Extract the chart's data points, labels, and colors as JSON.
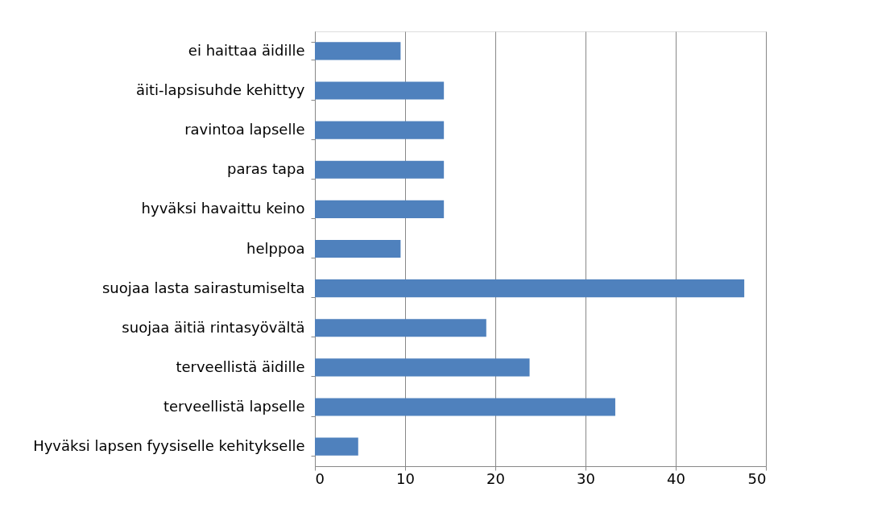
{
  "chart_data": {
    "type": "bar",
    "orientation": "horizontal",
    "categories": [
      "ei haittaa äidille",
      "äiti-lapsisuhde kehittyy",
      "ravintoa lapselle",
      "paras tapa",
      "hyväksi havaittu keino",
      "helppoa",
      "suojaa lasta sairastumiselta",
      "suojaa äitiä rintasyövältä",
      "terveellistä äidille",
      "terveellistä lapselle",
      "Hyväksi lapsen fyysiselle kehitykselle"
    ],
    "values": [
      9.5,
      14.3,
      14.3,
      14.3,
      14.3,
      9.5,
      47.6,
      19.0,
      23.8,
      33.3,
      4.8
    ],
    "color": "#4f81bd",
    "xlim": [
      0,
      50
    ],
    "xticks": [
      0,
      10,
      20,
      30,
      40,
      50
    ],
    "grid": "x"
  }
}
